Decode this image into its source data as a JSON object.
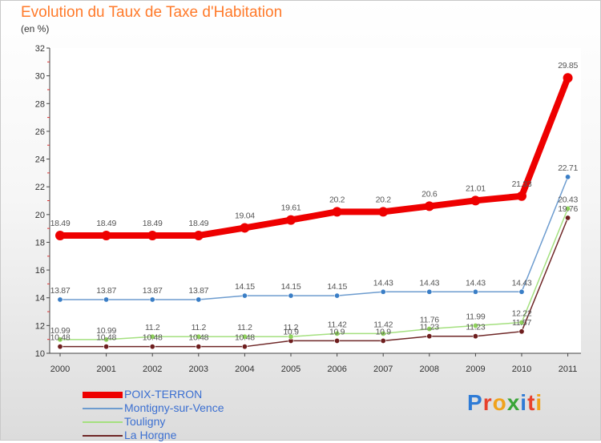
{
  "title": "Evolution du Taux de Taxe d'Habitation",
  "subtitle": "(en %)",
  "logo": {
    "text": "Proxiti",
    "colors": [
      "#2e7bd6",
      "#e8412c",
      "#f0a21c",
      "#3aa538",
      "#2e7bd6",
      "#e8412c",
      "#f0a21c"
    ]
  },
  "chart_data": {
    "type": "line",
    "title": "Evolution du Taux de Taxe d'Habitation",
    "ylabel": "(en %)",
    "xlabel": "",
    "x": [
      "2000",
      "2001",
      "2002",
      "2003",
      "2004",
      "2005",
      "2006",
      "2007",
      "2008",
      "2009",
      "2010",
      "2011"
    ],
    "ylim": [
      10,
      32
    ],
    "yticks": [
      10,
      12,
      14,
      16,
      18,
      20,
      22,
      24,
      26,
      28,
      30,
      32
    ],
    "grid": false,
    "legend_position": "bottom-left",
    "series": [
      {
        "name": "POIX-TERRON",
        "color": "#ee0000",
        "width": 8,
        "point_radius": 6,
        "fill": "#ee0000",
        "values": [
          18.49,
          18.49,
          18.49,
          18.49,
          19.04,
          19.61,
          20.2,
          20.2,
          20.6,
          21.01,
          21.33,
          29.85
        ],
        "labels": [
          "18.49",
          "18.49",
          "18.49",
          "18.49",
          "19.04",
          "19.61",
          "20.2",
          "20.2",
          "20.6",
          "21.01",
          "21.33",
          "29.85"
        ]
      },
      {
        "name": "Montigny-sur-Vence",
        "color": "#6d9ccf",
        "width": 1.5,
        "point_radius": 3.2,
        "fill": "#3a7ec6",
        "values": [
          13.87,
          13.87,
          13.87,
          13.87,
          14.15,
          14.15,
          14.15,
          14.43,
          14.43,
          14.43,
          14.43,
          22.71
        ],
        "labels": [
          "13.87",
          "13.87",
          "13.87",
          "13.87",
          "14.15",
          "14.15",
          "14.15",
          "14.43",
          "14.43",
          "14.43",
          "14.43",
          "22.71"
        ]
      },
      {
        "name": "Touligny",
        "color": "#a4e07f",
        "width": 1.5,
        "point_radius": 3.2,
        "fill": "#8fd15c",
        "values": [
          10.99,
          10.99,
          11.2,
          11.2,
          11.2,
          11.2,
          11.42,
          11.42,
          11.76,
          11.99,
          12.22,
          20.43
        ],
        "labels": [
          "10.99",
          "10.99",
          "11.2",
          "11.2",
          "11.2",
          "11.2",
          "11.42",
          "11.42",
          "11.76",
          "11.99",
          "12.22",
          "20.43"
        ]
      },
      {
        "name": "La Horgne",
        "color": "#6e2626",
        "width": 1.5,
        "point_radius": 3.2,
        "fill": "#6e1e1e",
        "values": [
          10.48,
          10.48,
          10.48,
          10.48,
          10.48,
          10.9,
          10.9,
          10.9,
          11.23,
          11.23,
          11.57,
          19.76
        ],
        "labels": [
          "10.48",
          "10.48",
          "10.48",
          "10.48",
          "10.48",
          "10.9",
          "10.9",
          "10.9",
          "11.23",
          "11.23",
          "11.57",
          "19.76"
        ]
      }
    ]
  }
}
